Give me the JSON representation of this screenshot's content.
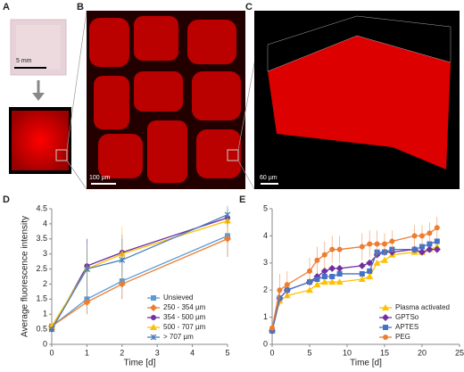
{
  "figure": {
    "panels": [
      "A",
      "B",
      "C",
      "D",
      "E"
    ],
    "scale_bars": [
      "5 mm",
      "100 µm",
      "60 µm"
    ]
  },
  "chart_data": [
    {
      "type": "line",
      "y_label": "Average fluorescence intensity",
      "x_label": "Time [d]",
      "x": [
        0,
        1,
        2,
        5
      ],
      "xlim": [
        0,
        5
      ],
      "xticks": [
        0,
        1,
        2,
        3,
        4,
        5
      ],
      "ylim": [
        0,
        4.5
      ],
      "yticks": [
        0,
        0.5,
        1,
        1.5,
        2,
        2.5,
        3,
        3.5,
        4,
        4.5
      ],
      "legend": "lower-right",
      "series": [
        {
          "name": "Unsieved",
          "color": "#5b9bd5",
          "marker": "square",
          "values": [
            0.6,
            1.5,
            2.1,
            3.6
          ],
          "errors": [
            0.1,
            0.5,
            0.6,
            0.7
          ]
        },
        {
          "name": "250 - 354 µm",
          "color": "#ed7d31",
          "marker": "diamond",
          "values": [
            0.6,
            1.4,
            2.0,
            3.5
          ],
          "errors": [
            0.1,
            0.4,
            0.5,
            0.6
          ]
        },
        {
          "name": "354 - 500 µm",
          "color": "#7030a0",
          "marker": "circle",
          "values": [
            0.5,
            2.6,
            3.05,
            4.2
          ],
          "errors": [
            0.1,
            0.9,
            0.6,
            0.3
          ]
        },
        {
          "name": "500 - 707 µm",
          "color": "#ffc000",
          "marker": "triangle",
          "values": [
            0.6,
            2.5,
            3.0,
            4.1
          ],
          "errors": [
            0.1,
            0.8,
            0.9,
            0.4
          ]
        },
        {
          "name": "> 707 µm",
          "color": "#4a7ebb",
          "marker": "cross",
          "values": [
            0.5,
            2.5,
            2.8,
            4.3
          ],
          "errors": [
            0.1,
            1.0,
            0.7,
            0.3
          ]
        }
      ]
    },
    {
      "type": "line",
      "x_label": "Time [d]",
      "x": [
        0,
        1,
        2,
        5,
        6,
        7,
        8,
        9,
        12,
        13,
        14,
        15,
        16,
        19,
        20,
        21,
        22
      ],
      "xlim": [
        0,
        25
      ],
      "xticks": [
        0,
        5,
        10,
        15,
        20,
        25
      ],
      "ylim": [
        0,
        5
      ],
      "yticks": [
        0,
        1,
        2,
        3,
        4,
        5
      ],
      "legend": "lower-right",
      "series": [
        {
          "name": "Plasma activated",
          "color": "#ffc000",
          "marker": "triangle",
          "values": [
            0.5,
            1.6,
            1.8,
            2.0,
            2.2,
            2.3,
            2.3,
            2.3,
            2.4,
            2.5,
            3.0,
            3.1,
            3.3,
            3.4,
            3.4,
            3.5,
            3.6
          ]
        },
        {
          "name": "GPTSo",
          "color": "#7030a0",
          "marker": "diamond",
          "values": [
            0.5,
            1.7,
            2.0,
            2.3,
            2.5,
            2.7,
            2.8,
            2.8,
            2.9,
            3.0,
            3.3,
            3.4,
            3.4,
            3.5,
            3.4,
            3.5,
            3.5
          ]
        },
        {
          "name": "APTES",
          "color": "#4472c4",
          "marker": "square",
          "values": [
            0.5,
            1.7,
            2.0,
            2.3,
            2.4,
            2.5,
            2.5,
            2.6,
            2.6,
            2.7,
            3.4,
            3.4,
            3.5,
            3.5,
            3.6,
            3.7,
            3.8
          ]
        },
        {
          "name": "PEG",
          "color": "#ed7d31",
          "marker": "circle",
          "values": [
            0.6,
            2.0,
            2.2,
            2.7,
            3.1,
            3.3,
            3.5,
            3.5,
            3.6,
            3.7,
            3.7,
            3.7,
            3.8,
            4.0,
            4.0,
            4.1,
            4.3
          ],
          "errors": [
            0.1,
            0.6,
            0.5,
            0.5,
            0.5,
            0.5,
            0.5,
            0.5,
            0.5,
            0.5,
            0.5,
            0.4,
            0.4,
            0.4,
            0.4,
            0.4,
            0.4
          ]
        }
      ]
    }
  ]
}
